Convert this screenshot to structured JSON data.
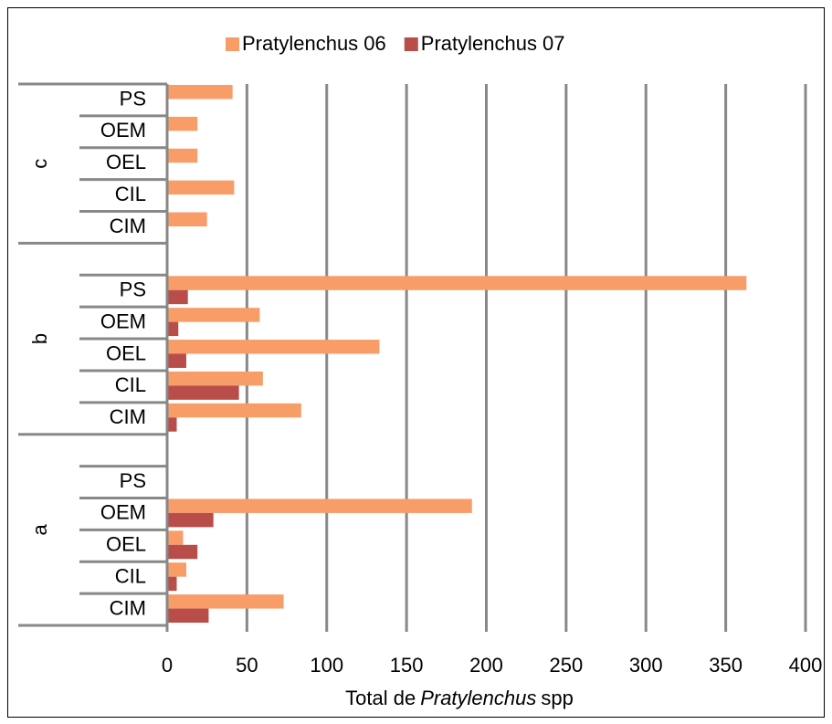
{
  "chart_data": {
    "type": "barh",
    "category_groups": [
      "a",
      "b",
      "c"
    ],
    "categories": [
      "CIM",
      "CIL",
      "OEL",
      "OEM",
      "PS",
      "CIM",
      "CIL",
      "OEL",
      "OEM",
      "PS",
      "CIM",
      "CIL",
      "OEL",
      "OEM",
      "PS"
    ],
    "series": [
      {
        "name": "Pratylenchus 06",
        "color": "#f89c68",
        "values": [
          73,
          12,
          10,
          191,
          0,
          84,
          60,
          133,
          58,
          363,
          25,
          42,
          19,
          19,
          41
        ]
      },
      {
        "name": "Pratylenchus 07",
        "color": "#b84d4a",
        "values": [
          26,
          6,
          19,
          29,
          0,
          6,
          45,
          12,
          7,
          13,
          0,
          0,
          0,
          0,
          0
        ]
      }
    ],
    "xlabel": [
      {
        "text": "Total de"
      },
      {
        "text": "Pratylenchus",
        "italic": true
      },
      {
        "text": "spp"
      }
    ],
    "xlim": [
      0,
      400
    ],
    "xticks": [
      0,
      50,
      100,
      150,
      200,
      250,
      300,
      350,
      400
    ],
    "grid": true,
    "legend": "top"
  }
}
